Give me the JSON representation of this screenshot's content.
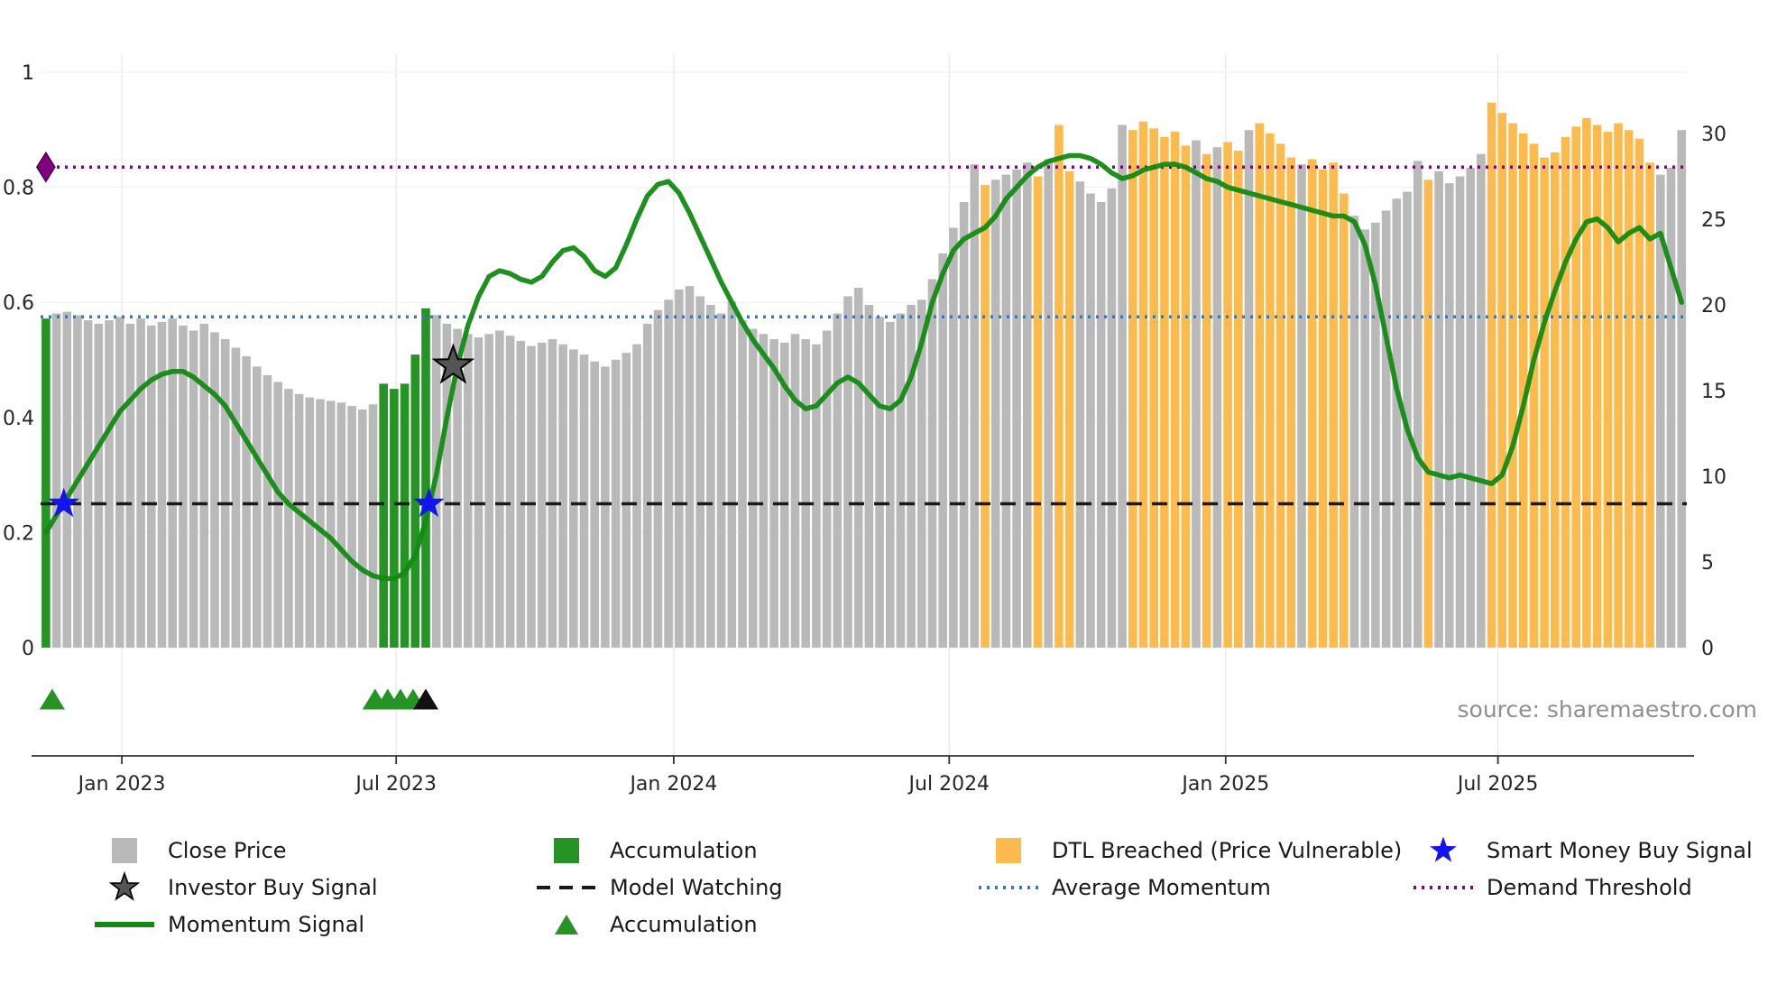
{
  "page": {
    "source_text": "source: sharemaestro.com"
  },
  "colors": {
    "close_price": "#b9b9b9",
    "accumulation": "#259425",
    "dtl_breached": "#fdbb4e",
    "momentum_line": "#118a11",
    "average_momentum": "#3579b8",
    "demand_threshold": "#800080",
    "model_watching": "#1a1a1a",
    "smart_money_star": "#1414f0",
    "investor_star_fill": "#555555",
    "investor_star_edge": "#000000",
    "black_triangle": "#111111",
    "axis_text": "#262626",
    "grid": "#e2e2e2"
  },
  "legend": {
    "close_price": "Close Price",
    "investor_buy": "Investor Buy Signal",
    "momentum_signal": "Momentum Signal",
    "accumulation_bar": "Accumulation",
    "model_watching": "Model Watching",
    "accumulation_marker": "Accumulation",
    "dtl_breached": "DTL Breached (Price Vulnerable)",
    "average_momentum": "Average Momentum",
    "smart_money": "Smart Money Buy Signal",
    "demand_threshold": "Demand Threshold"
  },
  "chart_data": {
    "type": "bar+line",
    "title": "",
    "x_axis": {
      "frequency": "weekly",
      "start": "Dec 2022",
      "end": "Nov 2025",
      "tick_labels": [
        "Jan 2023",
        "Jul 2023",
        "Jan 2024",
        "Jul 2024",
        "Jan 2025",
        "Jul 2025"
      ],
      "tick_weeks": [
        7.2,
        33.2,
        59.5,
        85.6,
        111.8,
        137.6
      ]
    },
    "left_axis": {
      "ticks": [
        0,
        0.2,
        0.4,
        0.6,
        0.8,
        1
      ],
      "tick_labels": [
        "0",
        "0.2",
        "0.4",
        "0.6",
        "0.8",
        "1"
      ],
      "range": [
        0,
        1
      ],
      "series": "Momentum Signal"
    },
    "right_axis": {
      "ticks": [
        0,
        5,
        10,
        15,
        20,
        25,
        30
      ],
      "tick_labels": [
        "0",
        "5",
        "10",
        "15",
        "20",
        "25",
        "30"
      ],
      "range": [
        0,
        30
      ],
      "series": "Close Price"
    },
    "series": [
      {
        "name": "Close Price",
        "type": "bar",
        "axis": "right",
        "values": [
          19.2,
          19.5,
          19.6,
          19.4,
          19.1,
          18.9,
          19.1,
          19.3,
          18.9,
          19.2,
          18.8,
          19.0,
          19.2,
          18.8,
          18.5,
          18.9,
          18.4,
          18.0,
          17.5,
          17.0,
          16.4,
          15.9,
          15.5,
          15.1,
          14.8,
          14.6,
          14.5,
          14.4,
          14.3,
          14.1,
          13.9,
          14.2,
          15.4,
          15.1,
          15.4,
          17.1,
          19.8,
          19.4,
          18.9,
          18.6,
          18.3,
          18.1,
          18.3,
          18.5,
          18.2,
          17.9,
          17.6,
          17.8,
          18.0,
          17.7,
          17.4,
          17.1,
          16.7,
          16.4,
          16.8,
          17.2,
          17.7,
          18.9,
          19.7,
          20.3,
          20.9,
          21.1,
          20.5,
          20.0,
          19.5,
          20.2,
          19.1,
          18.6,
          18.3,
          18.0,
          17.8,
          18.3,
          18.0,
          17.7,
          18.5,
          19.5,
          20.5,
          21.0,
          20.0,
          19.3,
          19.0,
          19.5,
          20.0,
          20.3,
          21.5,
          23.0,
          24.5,
          26.0,
          28.2,
          27.0,
          27.3,
          27.6,
          27.9,
          28.3,
          27.5,
          28.5,
          30.5,
          27.8,
          27.2,
          26.5,
          26.0,
          26.8,
          30.5,
          30.2,
          30.7,
          30.3,
          29.8,
          30.1,
          29.3,
          29.6,
          28.8,
          29.2,
          29.5,
          29.0,
          30.2,
          30.6,
          30.0,
          29.4,
          28.6,
          28.2,
          28.5,
          27.9,
          28.3,
          26.5,
          25.2,
          24.4,
          24.8,
          25.5,
          26.2,
          26.6,
          28.4,
          27.3,
          27.8,
          27.1,
          27.5,
          28.0,
          28.8,
          31.8,
          31.2,
          30.6,
          30.0,
          29.4,
          28.6,
          28.9,
          29.8,
          30.4,
          30.9,
          30.5,
          30.1,
          30.6,
          30.2,
          29.7,
          28.3,
          27.6,
          28.0,
          30.2
        ],
        "status": "agggggggggggggggggggggggggggggggaaaaaggggggggggggggggggggggggggggggggggggggggggggggggggggdggggdgddgggggddddddgdgddgddddgddddgggggggdgggggddddddddddddddddgggd",
        "status_key": {
          "g": "Close Price",
          "a": "Accumulation",
          "d": "DTL Breached (Price Vulnerable)"
        }
      },
      {
        "name": "Momentum Signal",
        "type": "line",
        "axis": "left",
        "values": [
          0.2,
          0.23,
          0.26,
          0.29,
          0.32,
          0.35,
          0.38,
          0.41,
          0.43,
          0.45,
          0.465,
          0.475,
          0.48,
          0.48,
          0.47,
          0.455,
          0.44,
          0.42,
          0.39,
          0.36,
          0.33,
          0.3,
          0.27,
          0.25,
          0.235,
          0.22,
          0.205,
          0.19,
          0.17,
          0.15,
          0.135,
          0.125,
          0.12,
          0.12,
          0.13,
          0.16,
          0.22,
          0.3,
          0.4,
          0.49,
          0.56,
          0.61,
          0.645,
          0.655,
          0.65,
          0.64,
          0.635,
          0.645,
          0.67,
          0.69,
          0.695,
          0.68,
          0.655,
          0.645,
          0.66,
          0.7,
          0.745,
          0.785,
          0.805,
          0.81,
          0.79,
          0.755,
          0.715,
          0.675,
          0.635,
          0.6,
          0.565,
          0.535,
          0.51,
          0.485,
          0.455,
          0.43,
          0.415,
          0.42,
          0.44,
          0.46,
          0.47,
          0.46,
          0.44,
          0.42,
          0.415,
          0.43,
          0.47,
          0.53,
          0.6,
          0.65,
          0.69,
          0.71,
          0.72,
          0.73,
          0.75,
          0.78,
          0.8,
          0.82,
          0.835,
          0.845,
          0.85,
          0.855,
          0.855,
          0.85,
          0.84,
          0.825,
          0.815,
          0.82,
          0.83,
          0.835,
          0.84,
          0.84,
          0.835,
          0.825,
          0.815,
          0.81,
          0.8,
          0.795,
          0.79,
          0.785,
          0.78,
          0.775,
          0.77,
          0.765,
          0.76,
          0.755,
          0.75,
          0.75,
          0.74,
          0.7,
          0.63,
          0.54,
          0.45,
          0.38,
          0.33,
          0.305,
          0.3,
          0.295,
          0.3,
          0.295,
          0.29,
          0.285,
          0.3,
          0.35,
          0.42,
          0.5,
          0.565,
          0.62,
          0.67,
          0.71,
          0.74,
          0.745,
          0.73,
          0.705,
          0.72,
          0.73,
          0.71,
          0.72,
          0.66,
          0.6
        ]
      }
    ],
    "reference_lines": [
      {
        "name": "demand-threshold",
        "label": "Demand Threshold",
        "y": 0.835,
        "axis": "left",
        "color": "#800080",
        "style": "dotted"
      },
      {
        "name": "average-momentum",
        "label": "Average Momentum",
        "y": 0.575,
        "axis": "left",
        "color": "#3579b8",
        "style": "dotted"
      },
      {
        "name": "model-watching",
        "label": "Model Watching",
        "y": 0.25,
        "axis": "left",
        "color": "#1a1a1a",
        "style": "dashed"
      }
    ],
    "markers": {
      "smart_money_buy_signals": [
        {
          "week": 1.7,
          "y": 0.25
        },
        {
          "week": 36.3,
          "y": 0.25
        }
      ],
      "investor_buy_signals": [
        {
          "week": 38.6,
          "y": 0.49
        }
      ],
      "accumulation_triangle_weeks": [
        0.6,
        31.2,
        32.4,
        33.6,
        34.8
      ],
      "black_triangle_weeks": [
        36.0
      ],
      "demand_diamond": {
        "week": 0,
        "y": 0.835
      }
    }
  }
}
